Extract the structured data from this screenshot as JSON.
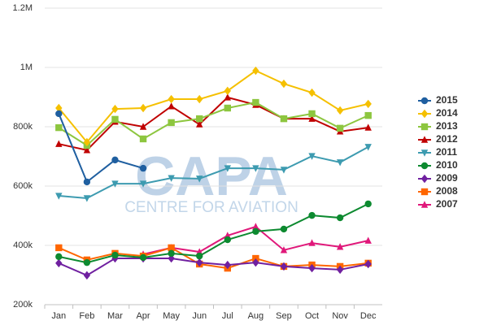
{
  "chart_data": {
    "type": "line",
    "watermark": "CAPA",
    "watermark_subtitle": "CENTRE FOR AVIATION",
    "categories": [
      "Jan",
      "Feb",
      "Mar",
      "Apr",
      "May",
      "Jun",
      "Jul",
      "Aug",
      "Sep",
      "Oct",
      "Nov",
      "Dec"
    ],
    "ylim": [
      200000,
      1200000
    ],
    "yticks": [
      {
        "value": 200000,
        "label": "200k"
      },
      {
        "value": 400000,
        "label": "400k"
      },
      {
        "value": 600000,
        "label": "600k"
      },
      {
        "value": 800000,
        "label": "800k"
      },
      {
        "value": 1000000,
        "label": "1M"
      },
      {
        "value": 1200000,
        "label": "1.2M"
      }
    ],
    "grid": true,
    "legend": "right",
    "series": [
      {
        "name": "2015",
        "color": "#1f5fa0",
        "marker": "circle",
        "values": [
          844000,
          614000,
          688000,
          660000,
          null,
          null,
          null,
          null,
          null,
          null,
          null,
          null
        ]
      },
      {
        "name": "2014",
        "color": "#f5c000",
        "marker": "diamond",
        "values": [
          863000,
          748000,
          860000,
          863000,
          893000,
          893000,
          921000,
          989000,
          945000,
          915000,
          855000,
          877000
        ]
      },
      {
        "name": "2013",
        "color": "#8dc63f",
        "marker": "square",
        "values": [
          797000,
          737000,
          825000,
          759000,
          814000,
          827000,
          863000,
          882000,
          827000,
          844000,
          795000,
          838000
        ]
      },
      {
        "name": "2012",
        "color": "#c00000",
        "marker": "triangle",
        "values": [
          742000,
          721000,
          817000,
          800000,
          869000,
          808000,
          899000,
          874000,
          827000,
          827000,
          784000,
          797000
        ]
      },
      {
        "name": "2011",
        "color": "#3d9bb0",
        "marker": "triangle-down",
        "values": [
          567000,
          559000,
          608000,
          608000,
          627000,
          625000,
          660000,
          660000,
          655000,
          701000,
          680000,
          732000
        ]
      },
      {
        "name": "2010",
        "color": "#0d8a30",
        "marker": "circle",
        "values": [
          362000,
          342000,
          367000,
          359000,
          373000,
          364000,
          419000,
          447000,
          455000,
          501000,
          493000,
          540000
        ]
      },
      {
        "name": "2009",
        "color": "#7020a0",
        "marker": "diamond",
        "values": [
          340000,
          299000,
          356000,
          356000,
          356000,
          342000,
          334000,
          342000,
          329000,
          323000,
          318000,
          337000
        ]
      },
      {
        "name": "2008",
        "color": "#ff6600",
        "marker": "square",
        "values": [
          392000,
          351000,
          373000,
          364000,
          392000,
          337000,
          323000,
          356000,
          329000,
          334000,
          329000,
          340000
        ]
      },
      {
        "name": "2007",
        "color": "#e0187a",
        "marker": "triangle",
        "values": [
          null,
          null,
          null,
          370000,
          392000,
          378000,
          433000,
          463000,
          384000,
          408000,
          395000,
          416000
        ]
      }
    ]
  }
}
